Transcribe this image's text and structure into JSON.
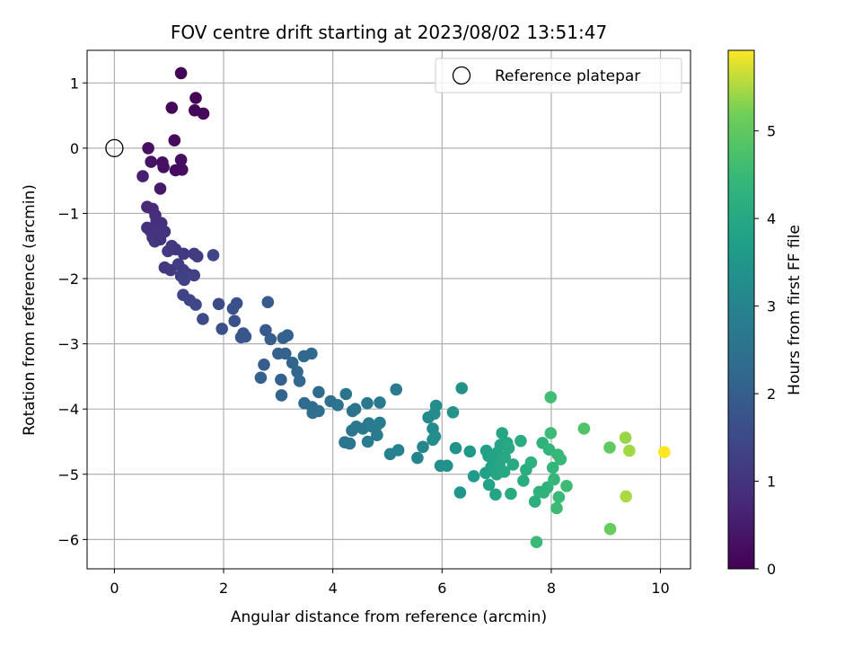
{
  "chart_data": {
    "type": "scatter",
    "title": "FOV centre drift starting at 2023/08/02 13:51:47",
    "xlabel": "Angular distance from reference (arcmin)",
    "ylabel": "Rotation from reference (arcmin)",
    "xlim": [
      -0.5,
      10.55
    ],
    "ylim": [
      -6.45,
      1.5
    ],
    "xticks": [
      0,
      2,
      4,
      6,
      8,
      10
    ],
    "yticks": [
      1,
      0,
      -1,
      -2,
      -3,
      -4,
      -5,
      -6
    ],
    "grid": true,
    "colormap": "viridis",
    "colorbar": {
      "label": "Hours from first FF file",
      "range": [
        0,
        5.92
      ],
      "ticks": [
        0,
        1,
        2,
        3,
        4,
        5
      ]
    },
    "legend": {
      "position": "top-right",
      "entries": [
        {
          "label": "Reference platepar",
          "marker": "open-circle"
        }
      ]
    },
    "reference_point": {
      "x": 0,
      "y": 0
    },
    "points": [
      [
        1.22,
        1.15,
        0.05
      ],
      [
        1.49,
        0.77,
        0.08
      ],
      [
        1.05,
        0.62,
        0.1
      ],
      [
        1.47,
        0.58,
        0.12
      ],
      [
        1.63,
        0.53,
        0.13
      ],
      [
        1.1,
        0.12,
        0.18
      ],
      [
        0.62,
        0.0,
        0.3
      ],
      [
        1.22,
        -0.18,
        0.25
      ],
      [
        0.67,
        -0.21,
        0.35
      ],
      [
        0.88,
        -0.22,
        0.28
      ],
      [
        0.9,
        -0.29,
        0.3
      ],
      [
        1.12,
        -0.34,
        0.22
      ],
      [
        1.24,
        -0.33,
        0.24
      ],
      [
        0.52,
        -0.43,
        0.6
      ],
      [
        0.84,
        -0.62,
        0.45
      ],
      [
        0.6,
        -0.9,
        0.75
      ],
      [
        0.7,
        -0.93,
        0.8
      ],
      [
        0.75,
        -1.03,
        0.85
      ],
      [
        0.77,
        -1.12,
        0.9
      ],
      [
        0.86,
        -1.15,
        0.95
      ],
      [
        0.6,
        -1.22,
        0.92
      ],
      [
        0.66,
        -1.27,
        0.95
      ],
      [
        0.8,
        -1.25,
        0.98
      ],
      [
        0.92,
        -1.28,
        1.0
      ],
      [
        0.7,
        -1.37,
        1.0
      ],
      [
        0.74,
        -1.43,
        1.05
      ],
      [
        0.84,
        -1.4,
        1.02
      ],
      [
        1.05,
        -1.5,
        1.08
      ],
      [
        1.12,
        -1.55,
        1.1
      ],
      [
        0.98,
        -1.58,
        1.12
      ],
      [
        1.27,
        -1.62,
        1.15
      ],
      [
        1.46,
        -1.62,
        1.18
      ],
      [
        1.52,
        -1.66,
        1.2
      ],
      [
        0.92,
        -1.83,
        1.1
      ],
      [
        1.03,
        -1.87,
        1.15
      ],
      [
        1.17,
        -1.78,
        1.2
      ],
      [
        1.26,
        -1.87,
        1.25
      ],
      [
        1.22,
        -1.96,
        1.22
      ],
      [
        1.34,
        -1.93,
        1.28
      ],
      [
        1.28,
        -2.02,
        1.3
      ],
      [
        1.46,
        -1.95,
        1.32
      ],
      [
        1.81,
        -1.64,
        1.4
      ],
      [
        1.26,
        -2.25,
        1.35
      ],
      [
        1.38,
        -2.33,
        1.4
      ],
      [
        1.49,
        -2.4,
        1.45
      ],
      [
        1.91,
        -2.39,
        1.55
      ],
      [
        1.62,
        -2.62,
        1.55
      ],
      [
        2.24,
        -2.38,
        1.65
      ],
      [
        2.17,
        -2.46,
        1.68
      ],
      [
        2.2,
        -2.65,
        1.7
      ],
      [
        1.97,
        -2.77,
        1.65
      ],
      [
        2.36,
        -2.84,
        1.8
      ],
      [
        2.4,
        -2.89,
        1.82
      ],
      [
        2.32,
        -2.9,
        1.8
      ],
      [
        2.81,
        -2.36,
        1.9
      ],
      [
        2.77,
        -2.79,
        1.92
      ],
      [
        2.86,
        -2.93,
        1.95
      ],
      [
        3.17,
        -2.87,
        2.05
      ],
      [
        3.09,
        -2.91,
        2.05
      ],
      [
        2.74,
        -3.32,
        1.95
      ],
      [
        3.0,
        -3.15,
        2.05
      ],
      [
        3.13,
        -3.15,
        2.1
      ],
      [
        3.26,
        -3.29,
        2.15
      ],
      [
        3.47,
        -3.19,
        2.25
      ],
      [
        3.61,
        -3.15,
        2.28
      ],
      [
        2.68,
        -3.52,
        2.0
      ],
      [
        3.35,
        -3.43,
        2.2
      ],
      [
        3.39,
        -3.57,
        2.22
      ],
      [
        3.05,
        -3.55,
        2.1
      ],
      [
        3.06,
        -3.79,
        2.15
      ],
      [
        3.74,
        -3.74,
        2.35
      ],
      [
        3.48,
        -3.91,
        2.3
      ],
      [
        3.62,
        -3.97,
        2.35
      ],
      [
        3.74,
        -4.03,
        2.4
      ],
      [
        3.63,
        -4.06,
        2.38
      ],
      [
        3.96,
        -3.88,
        2.45
      ],
      [
        4.09,
        -3.94,
        2.5
      ],
      [
        4.41,
        -4.0,
        2.55
      ],
      [
        4.36,
        -4.03,
        2.55
      ],
      [
        4.24,
        -3.77,
        2.55
      ],
      [
        4.63,
        -3.91,
        2.65
      ],
      [
        4.86,
        -3.9,
        2.7
      ],
      [
        5.16,
        -3.7,
        2.75
      ],
      [
        4.22,
        -4.51,
        2.6
      ],
      [
        4.31,
        -4.53,
        2.62
      ],
      [
        4.35,
        -4.33,
        2.62
      ],
      [
        4.43,
        -4.27,
        2.65
      ],
      [
        4.55,
        -4.3,
        2.68
      ],
      [
        4.66,
        -4.22,
        2.72
      ],
      [
        4.72,
        -4.27,
        2.75
      ],
      [
        4.79,
        -4.27,
        2.78
      ],
      [
        4.86,
        -4.21,
        2.8
      ],
      [
        4.64,
        -4.5,
        2.75
      ],
      [
        4.81,
        -4.4,
        2.78
      ],
      [
        5.05,
        -4.69,
        2.9
      ],
      [
        5.2,
        -4.63,
        2.95
      ],
      [
        5.55,
        -4.75,
        3.05
      ],
      [
        5.65,
        -4.58,
        3.1
      ],
      [
        5.83,
        -4.3,
        3.2
      ],
      [
        5.75,
        -4.13,
        3.18
      ],
      [
        5.86,
        -4.07,
        3.22
      ],
      [
        5.89,
        -3.95,
        3.25
      ],
      [
        5.83,
        -4.47,
        3.25
      ],
      [
        5.87,
        -4.42,
        3.28
      ],
      [
        5.97,
        -4.87,
        3.3
      ],
      [
        6.09,
        -4.87,
        3.35
      ],
      [
        6.2,
        -4.05,
        3.38
      ],
      [
        6.36,
        -3.68,
        3.42
      ],
      [
        6.25,
        -4.6,
        3.42
      ],
      [
        6.51,
        -4.65,
        3.55
      ],
      [
        6.58,
        -5.03,
        3.6
      ],
      [
        6.33,
        -5.28,
        3.5
      ],
      [
        6.81,
        -4.64,
        3.75
      ],
      [
        6.85,
        -4.72,
        3.8
      ],
      [
        6.9,
        -4.89,
        3.85
      ],
      [
        6.95,
        -4.75,
        3.85
      ],
      [
        7.01,
        -4.67,
        3.88
      ],
      [
        7.07,
        -4.55,
        3.9
      ],
      [
        7.1,
        -4.37,
        3.95
      ],
      [
        7.19,
        -4.52,
        3.95
      ],
      [
        7.22,
        -4.6,
        4.0
      ],
      [
        7.3,
        -4.85,
        4.02
      ],
      [
        7.05,
        -4.86,
        3.95
      ],
      [
        7.15,
        -4.74,
        3.98
      ],
      [
        6.8,
        -4.98,
        3.8
      ],
      [
        6.86,
        -5.16,
        3.85
      ],
      [
        6.98,
        -5.31,
        3.9
      ],
      [
        7.0,
        -5.0,
        3.92
      ],
      [
        7.14,
        -4.96,
        3.98
      ],
      [
        7.26,
        -5.3,
        4.05
      ],
      [
        7.44,
        -4.49,
        4.1
      ],
      [
        7.49,
        -5.1,
        4.12
      ],
      [
        7.54,
        -4.93,
        4.15
      ],
      [
        7.63,
        -4.82,
        4.2
      ],
      [
        7.7,
        -5.42,
        4.22
      ],
      [
        7.78,
        -5.27,
        4.25
      ],
      [
        7.86,
        -5.28,
        4.28
      ],
      [
        7.84,
        -4.52,
        4.28
      ],
      [
        7.93,
        -5.2,
        4.3
      ],
      [
        7.96,
        -4.62,
        4.35
      ],
      [
        8.03,
        -4.9,
        4.4
      ],
      [
        8.05,
        -5.08,
        4.42
      ],
      [
        8.12,
        -4.7,
        4.45
      ],
      [
        8.17,
        -4.77,
        4.48
      ],
      [
        8.14,
        -5.35,
        4.5
      ],
      [
        8.1,
        -5.52,
        4.52
      ],
      [
        8.28,
        -5.18,
        4.55
      ],
      [
        7.99,
        -4.37,
        4.55
      ],
      [
        7.99,
        -3.82,
        4.6
      ],
      [
        7.73,
        -6.04,
        4.5
      ],
      [
        8.6,
        -4.3,
        4.8
      ],
      [
        9.07,
        -4.59,
        5.0
      ],
      [
        9.08,
        -5.84,
        5.1
      ],
      [
        9.36,
        -4.44,
        5.4
      ],
      [
        9.43,
        -4.64,
        5.45
      ],
      [
        9.37,
        -5.34,
        5.5
      ],
      [
        10.07,
        -4.66,
        5.92
      ]
    ]
  }
}
